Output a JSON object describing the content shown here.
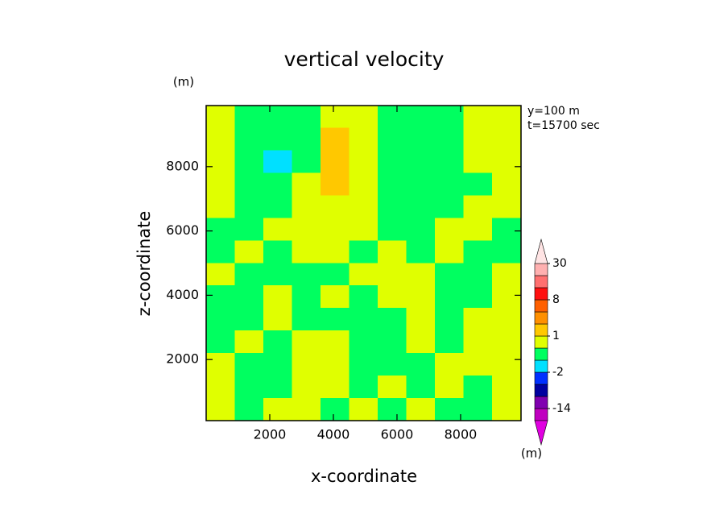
{
  "chart_data": {
    "type": "contour",
    "title": "vertical velocity",
    "x_label": "x-coordinate",
    "y_label": "z-coordinate",
    "y_unit": "(m)",
    "annotations": [
      "y=100 m",
      "t=15700 sec"
    ],
    "xlim": [
      0,
      9900
    ],
    "ylim": [
      100,
      9900
    ],
    "xticks": [
      2000,
      4000,
      6000,
      8000
    ],
    "yticks": [
      2000,
      4000,
      6000,
      8000
    ],
    "x": [
      450,
      1350,
      2250,
      3150,
      4050,
      4950,
      5850,
      6750,
      7650,
      8550,
      9450
    ],
    "y": [
      9550,
      8850,
      8150,
      7450,
      6750,
      6050,
      5350,
      4650,
      3950,
      3250,
      2550,
      1850,
      1150,
      450
    ],
    "z": [
      [
        0.5,
        -0.5,
        -0.5,
        -0.5,
        0.5,
        0.5,
        -0.5,
        -0.5,
        -0.5,
        0.5,
        0.5
      ],
      [
        0.5,
        -0.5,
        -0.5,
        -0.5,
        1.5,
        0.5,
        -0.5,
        -0.5,
        -0.5,
        0.5,
        0.5
      ],
      [
        0.5,
        -0.5,
        -1.5,
        -0.5,
        1.5,
        0.5,
        -0.5,
        -0.5,
        -0.5,
        0.5,
        0.5
      ],
      [
        0.5,
        -0.5,
        -0.5,
        0.5,
        1.5,
        0.5,
        -0.5,
        -0.5,
        -0.5,
        -0.5,
        0.5
      ],
      [
        0.5,
        -0.5,
        -0.5,
        0.5,
        0.5,
        0.5,
        -0.5,
        -0.5,
        -0.5,
        0.5,
        0.5
      ],
      [
        -0.5,
        -0.5,
        0.5,
        0.5,
        0.5,
        0.5,
        -0.5,
        -0.5,
        0.5,
        0.5,
        -0.5
      ],
      [
        -0.5,
        0.5,
        -0.5,
        0.5,
        0.5,
        -0.5,
        0.5,
        -0.5,
        0.5,
        -0.5,
        -0.5
      ],
      [
        0.5,
        -0.5,
        -0.5,
        -0.5,
        -0.5,
        0.5,
        0.5,
        0.5,
        -0.5,
        -0.5,
        0.5
      ],
      [
        -0.5,
        -0.5,
        0.5,
        -0.5,
        0.5,
        -0.5,
        0.5,
        0.5,
        -0.5,
        -0.5,
        0.5
      ],
      [
        -0.5,
        -0.5,
        0.5,
        -0.5,
        -0.5,
        -0.5,
        -0.5,
        0.5,
        -0.5,
        0.5,
        0.5
      ],
      [
        -0.5,
        0.5,
        -0.5,
        0.5,
        0.5,
        -0.5,
        -0.5,
        0.5,
        -0.5,
        0.5,
        0.5
      ],
      [
        0.5,
        -0.5,
        -0.5,
        0.5,
        0.5,
        -0.5,
        -0.5,
        -0.5,
        0.5,
        0.5,
        0.5
      ],
      [
        0.5,
        -0.5,
        -0.5,
        0.5,
        0.5,
        -0.5,
        0.5,
        -0.5,
        0.5,
        -0.5,
        0.5
      ],
      [
        0.5,
        -0.5,
        0.5,
        0.5,
        -0.5,
        0.5,
        -0.5,
        0.5,
        -0.5,
        -0.5,
        0.5
      ]
    ],
    "colorbar": {
      "levels": [
        -20,
        -14,
        -8,
        -4,
        -2,
        -1,
        0,
        1,
        2,
        4,
        8,
        14,
        20,
        30
      ],
      "colors": [
        "#e000e0",
        "#c000c0",
        "#8000b0",
        "#0000a0",
        "#0030ff",
        "#00e0ff",
        "#00ff60",
        "#e0ff00",
        "#ffc800",
        "#ff9000",
        "#ff6000",
        "#ff1010",
        "#ff7070",
        "#ffb0b0",
        "#ffe4e4"
      ],
      "ticks": [
        -14,
        -2,
        1,
        8,
        30
      ],
      "unit": "(m)"
    }
  }
}
